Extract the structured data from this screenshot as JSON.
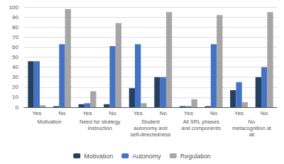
{
  "chart_data": {
    "type": "bar",
    "categories": [
      "Yes",
      "No",
      "Yes",
      "No",
      "Yes",
      "No",
      "Yes",
      "No",
      "Yes",
      "No"
    ],
    "group_labels": [
      "Motivation",
      "Need for strategy\ninstruction",
      "Student\nautonomy and\nself-directedness",
      "All SRL phases\nand components",
      "No\nmetacognition at\nall"
    ],
    "series": [
      {
        "name": "Motivation",
        "color": "#243F60",
        "values": [
          46,
          1,
          3,
          3,
          19,
          30,
          1,
          1,
          17,
          30
        ]
      },
      {
        "name": "Autonomy",
        "color": "#4472C4",
        "values": [
          46,
          63,
          4,
          61,
          63,
          30,
          1,
          63,
          25,
          40
        ]
      },
      {
        "name": "Regulation",
        "color": "#A6A6A6",
        "values": [
          2,
          98,
          16,
          84,
          4,
          95,
          8,
          92,
          5,
          95
        ]
      }
    ],
    "ylim": [
      0,
      100
    ],
    "yticks": [
      0,
      10,
      20,
      30,
      40,
      50,
      60,
      70,
      80,
      90,
      100
    ],
    "grid": true,
    "legend": "bottom"
  }
}
